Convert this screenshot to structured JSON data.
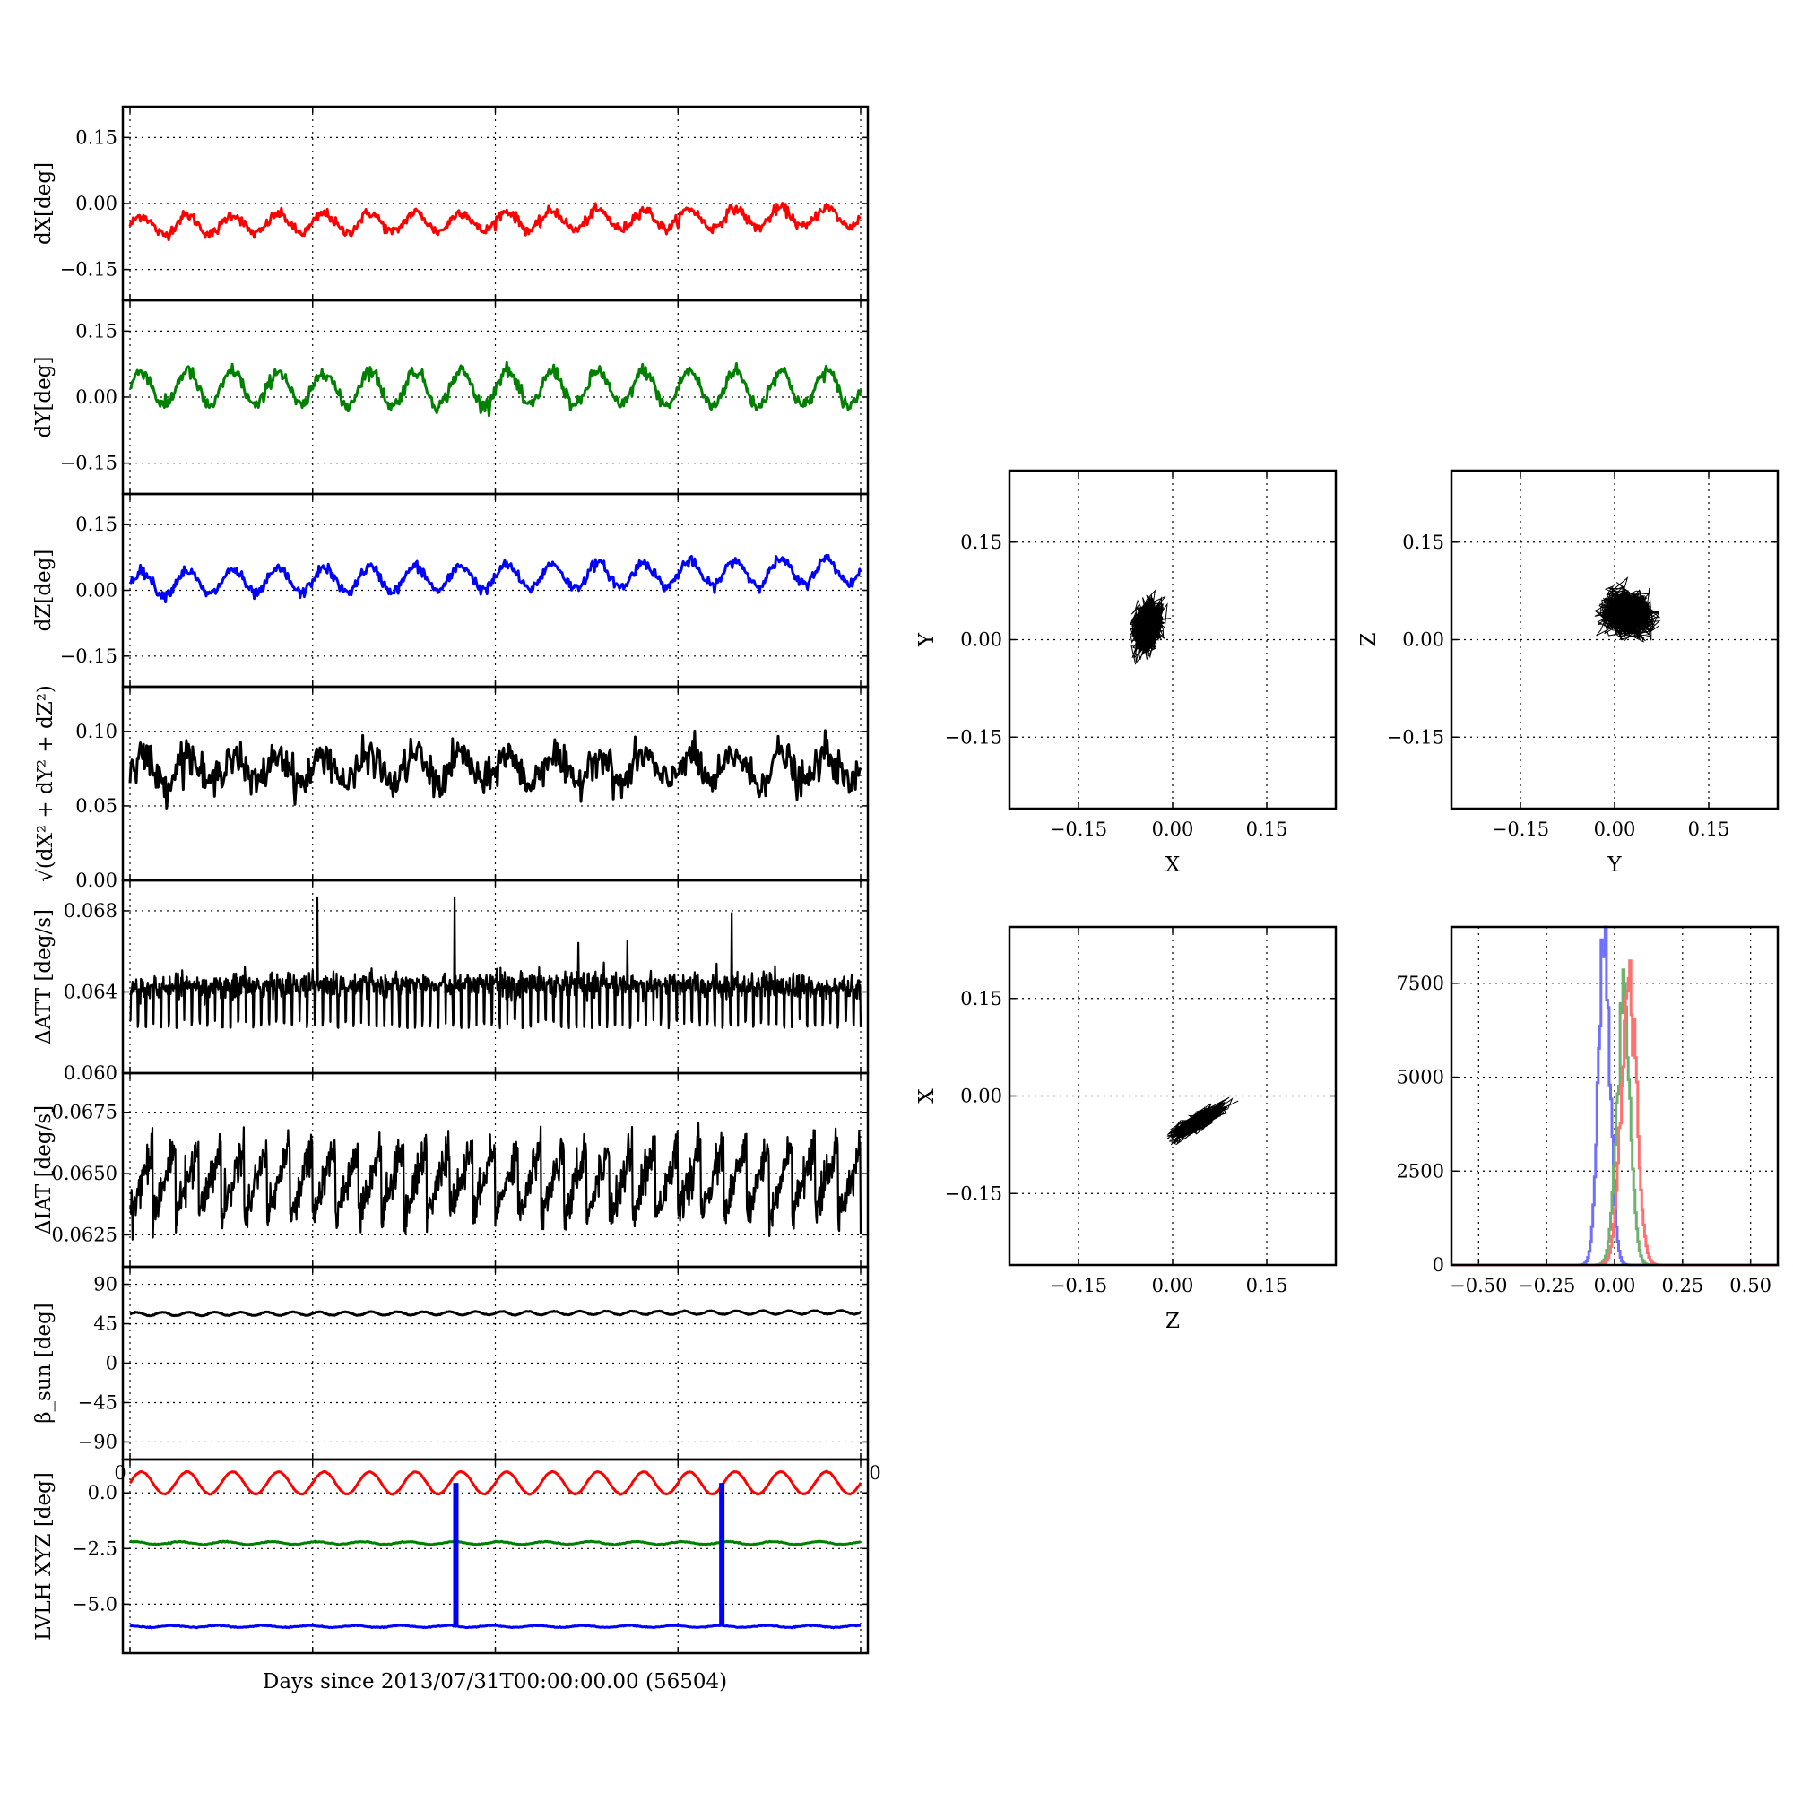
{
  "figure": {
    "xlabel": "Days since 2013/07/31T00:00:00.00 (56504)",
    "stray_tick_left": "0",
    "stray_tick_right": "0"
  },
  "chart_data": [
    {
      "id": "dx",
      "type": "line",
      "ylabel": "dX[deg]",
      "ylim": [
        -0.22,
        0.22
      ],
      "yticks": [
        0.15,
        0.0,
        -0.15
      ],
      "ytick_labels": [
        "0.15",
        "0.00",
        "−0.15"
      ],
      "xlim": [
        0,
        1
      ],
      "grid": true,
      "series": [
        {
          "color": "#ff0000",
          "mean": -0.04,
          "amplitude": 0.022,
          "periods": 16,
          "trend": 0.02,
          "noise": 0.006
        }
      ]
    },
    {
      "id": "dy",
      "type": "line",
      "ylabel": "dY[deg]",
      "ylim": [
        -0.22,
        0.22
      ],
      "yticks": [
        0.15,
        0.0,
        -0.15
      ],
      "ytick_labels": [
        "0.15",
        "0.00",
        "−0.15"
      ],
      "xlim": [
        0,
        1
      ],
      "grid": true,
      "series": [
        {
          "color": "#008000",
          "mean": 0.02,
          "amplitude": 0.04,
          "periods": 16,
          "trend": 0.0,
          "noise": 0.008
        }
      ]
    },
    {
      "id": "dz",
      "type": "line",
      "ylabel": "dZ[deg]",
      "ylim": [
        -0.22,
        0.22
      ],
      "yticks": [
        0.15,
        0.0,
        -0.15
      ],
      "ytick_labels": [
        "0.15",
        "0.00",
        "−0.15"
      ],
      "xlim": [
        0,
        1
      ],
      "grid": true,
      "series": [
        {
          "color": "#0000ff",
          "mean": 0.03,
          "amplitude": 0.028,
          "periods": 16,
          "trend": 0.03,
          "noise": 0.006
        }
      ]
    },
    {
      "id": "dtotal",
      "type": "line",
      "ylabel": "√(dX² + dY² + dZ²)",
      "ylim": [
        0.0,
        0.13
      ],
      "yticks": [
        0.1,
        0.05,
        0.0
      ],
      "ytick_labels": [
        "0.10",
        "0.05",
        "0.00"
      ],
      "xlim": [
        0,
        1
      ],
      "grid": true,
      "series": [
        {
          "color": "#000000",
          "mean": 0.075,
          "amplitude": 0.01,
          "periods": 16,
          "trend": 0.0,
          "noise": 0.006
        }
      ]
    },
    {
      "id": "datt",
      "type": "line",
      "ylabel": "ΔATT [deg/s]",
      "ylim": [
        0.06,
        0.0695
      ],
      "yticks": [
        0.068,
        0.064,
        0.06
      ],
      "ytick_labels": [
        "0.068",
        "0.064",
        "0.060"
      ],
      "xlim": [
        0,
        1
      ],
      "grid": true,
      "series": [
        {
          "color": "#000000",
          "mean": 0.0642,
          "amplitude": 0.0005,
          "periods": 95,
          "trend": 0.0,
          "noise": 0.0005
        }
      ]
    },
    {
      "id": "diat",
      "type": "line",
      "ylabel": "ΔIAT [deg/s]",
      "ylim": [
        0.0612,
        0.0691
      ],
      "yticks": [
        0.0675,
        0.065,
        0.0625
      ],
      "ytick_labels": [
        "0.0675",
        "0.0650",
        "0.0625"
      ],
      "xlim": [
        0,
        1
      ],
      "grid": true,
      "series": [
        {
          "color": "#000000",
          "mean": 0.0647,
          "amplitude": 0.0015,
          "periods": 32,
          "trend": 0.0,
          "noise": 0.0004
        }
      ]
    },
    {
      "id": "beta",
      "type": "line",
      "ylabel": "β_sun [deg]",
      "ylim": [
        -110,
        110
      ],
      "yticks": [
        90,
        45,
        0,
        -45,
        -90
      ],
      "ytick_labels": [
        "90",
        "45",
        "0",
        "−45",
        "−90"
      ],
      "xlim": [
        0,
        1
      ],
      "grid": true,
      "series": [
        {
          "color": "#000000",
          "mean": 57,
          "amplitude": 2,
          "periods": 28,
          "trend": 2,
          "noise": 0.2
        }
      ]
    },
    {
      "id": "lvlh",
      "type": "line",
      "ylabel": "LVLH XYZ [deg]",
      "ylim": [
        -7.2,
        1.5
      ],
      "yticks": [
        0.0,
        -2.5,
        -5.0
      ],
      "ytick_labels": [
        "0.0",
        "−2.5",
        "−5.0"
      ],
      "extra_tick_label": "0",
      "xlim": [
        0,
        1
      ],
      "grid": true,
      "spikes_x": [
        0.446,
        0.81
      ],
      "series": [
        {
          "color": "#ff0000",
          "mean": 0.45,
          "amplitude": 0.5,
          "periods": 16,
          "trend": 0,
          "noise": 0.01
        },
        {
          "color": "#008000",
          "mean": -2.25,
          "amplitude": 0.06,
          "periods": 16,
          "trend": 0,
          "noise": 0.01
        },
        {
          "color": "#0000ff",
          "mean": -6.0,
          "amplitude": 0.04,
          "periods": 16,
          "trend": 0,
          "noise": 0.01
        }
      ]
    },
    {
      "id": "scatter_xy",
      "type": "scatter",
      "xlabel": "X",
      "ylabel": "Y",
      "xlim": [
        -0.26,
        0.26
      ],
      "ylim": [
        -0.26,
        0.26
      ],
      "ticks": [
        -0.15,
        0.0,
        0.15
      ],
      "tick_labels": [
        "−0.15",
        "0.00",
        "0.15"
      ],
      "grid": true,
      "cloud": {
        "cx": -0.04,
        "cy": 0.02,
        "sx": 0.02,
        "sy": 0.035,
        "rho": 0.3
      }
    },
    {
      "id": "scatter_yz",
      "type": "scatter",
      "xlabel": "Y",
      "ylabel": "Z",
      "xlim": [
        -0.26,
        0.26
      ],
      "ylim": [
        -0.26,
        0.26
      ],
      "ticks": [
        -0.15,
        0.0,
        0.15
      ],
      "tick_labels": [
        "−0.15",
        "0.00",
        "0.15"
      ],
      "grid": true,
      "cloud": {
        "cx": 0.02,
        "cy": 0.04,
        "sx": 0.035,
        "sy": 0.03,
        "rho": -0.1
      }
    },
    {
      "id": "scatter_zx",
      "type": "scatter",
      "xlabel": "Z",
      "ylabel": "X",
      "xlim": [
        -0.26,
        0.26
      ],
      "ylim": [
        -0.26,
        0.26
      ],
      "ticks": [
        -0.15,
        0.0,
        0.15
      ],
      "tick_labels": [
        "−0.15",
        "0.00",
        "0.15"
      ],
      "grid": true,
      "cloud": {
        "cx": 0.04,
        "cy": -0.04,
        "sx": 0.035,
        "sy": 0.022,
        "rho": 0.85
      }
    },
    {
      "id": "histogram",
      "type": "line",
      "xlim": [
        -0.6,
        0.6
      ],
      "ylim": [
        0,
        9000
      ],
      "xticks": [
        -0.5,
        -0.25,
        0.0,
        0.25,
        0.5
      ],
      "xtick_labels": [
        "−0.50",
        "−0.25",
        "0.00",
        "0.25",
        "0.50"
      ],
      "yticks": [
        7500,
        5000,
        2500,
        0
      ],
      "ytick_labels": [
        "7500",
        "5000",
        "2500",
        "0"
      ],
      "grid": true,
      "series": [
        {
          "color": "#7070ff",
          "center": -0.04,
          "width": 0.022,
          "peak": 8300
        },
        {
          "color": "#70b070",
          "center": 0.03,
          "width": 0.025,
          "peak": 7000
        },
        {
          "color": "#ff7070",
          "center": 0.05,
          "width": 0.028,
          "peak": 7400
        }
      ]
    }
  ]
}
